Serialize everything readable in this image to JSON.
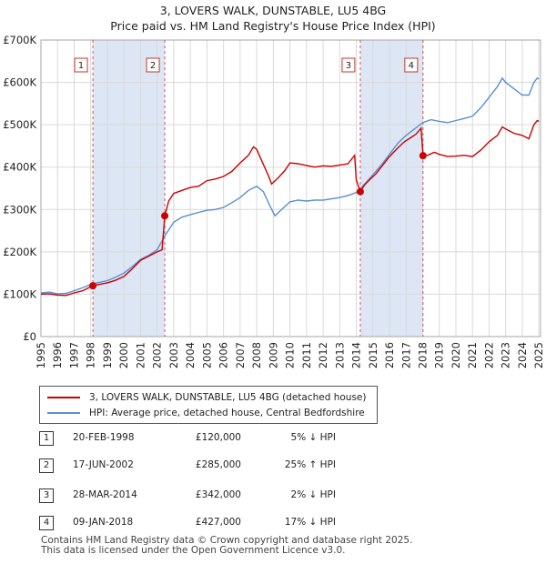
{
  "title": "3, LOVERS WALK, DUNSTABLE, LU5 4BG",
  "subtitle": "Price paid vs. HM Land Registry's House Price Index (HPI)",
  "colors": {
    "property": "#cc0000",
    "hpi": "#5a8fd0",
    "shade": "#dce6f5",
    "grid": "#d9d9d9"
  },
  "chart_data": {
    "type": "line",
    "xlim": [
      1995,
      2025.1
    ],
    "ylim": [
      0,
      700000
    ],
    "y_ticks": [
      {
        "value": 0,
        "label": "£0"
      },
      {
        "value": 100000,
        "label": "£100K"
      },
      {
        "value": 200000,
        "label": "£200K"
      },
      {
        "value": 300000,
        "label": "£300K"
      },
      {
        "value": 400000,
        "label": "£400K"
      },
      {
        "value": 500000,
        "label": "£500K"
      },
      {
        "value": 600000,
        "label": "£600K"
      },
      {
        "value": 700000,
        "label": "£700K"
      }
    ],
    "x_ticks": [
      "1995",
      "1996",
      "1997",
      "1998",
      "1999",
      "2000",
      "2001",
      "2002",
      "2003",
      "2004",
      "2005",
      "2006",
      "2007",
      "2008",
      "2009",
      "2010",
      "2011",
      "2012",
      "2013",
      "2014",
      "2015",
      "2016",
      "2017",
      "2018",
      "2019",
      "2020",
      "2021",
      "2022",
      "2023",
      "2024",
      "2025"
    ],
    "shaded_periods": [
      [
        1998.13,
        2002.46
      ],
      [
        2014.24,
        2018.02
      ]
    ],
    "series": [
      {
        "name": "3, LOVERS WALK, DUNSTABLE, LU5 4BG (detached house)",
        "points": [
          [
            1995.0,
            100000
          ],
          [
            1995.5,
            101000
          ],
          [
            1996.0,
            98000
          ],
          [
            1996.5,
            97000
          ],
          [
            1997.0,
            103000
          ],
          [
            1997.5,
            108000
          ],
          [
            1998.13,
            120000
          ],
          [
            1998.5,
            123000
          ],
          [
            1999.0,
            127000
          ],
          [
            1999.5,
            133000
          ],
          [
            2000.0,
            142000
          ],
          [
            2000.5,
            160000
          ],
          [
            2001.0,
            180000
          ],
          [
            2001.5,
            190000
          ],
          [
            2002.0,
            200000
          ],
          [
            2002.3,
            205000
          ],
          [
            2002.46,
            285000
          ],
          [
            2002.7,
            320000
          ],
          [
            2003.0,
            338000
          ],
          [
            2003.5,
            345000
          ],
          [
            2004.0,
            352000
          ],
          [
            2004.5,
            355000
          ],
          [
            2005.0,
            368000
          ],
          [
            2005.5,
            372000
          ],
          [
            2006.0,
            378000
          ],
          [
            2006.5,
            390000
          ],
          [
            2007.0,
            410000
          ],
          [
            2007.5,
            428000
          ],
          [
            2007.8,
            448000
          ],
          [
            2008.0,
            442000
          ],
          [
            2008.3,
            415000
          ],
          [
            2008.7,
            380000
          ],
          [
            2008.9,
            360000
          ],
          [
            2009.3,
            375000
          ],
          [
            2009.7,
            392000
          ],
          [
            2010.0,
            410000
          ],
          [
            2010.5,
            408000
          ],
          [
            2011.0,
            404000
          ],
          [
            2011.5,
            400000
          ],
          [
            2012.0,
            403000
          ],
          [
            2012.5,
            402000
          ],
          [
            2013.0,
            405000
          ],
          [
            2013.5,
            408000
          ],
          [
            2013.9,
            428000
          ],
          [
            2014.0,
            370000
          ],
          [
            2014.24,
            342000
          ],
          [
            2014.5,
            358000
          ],
          [
            2014.8,
            370000
          ],
          [
            2015.2,
            385000
          ],
          [
            2015.6,
            405000
          ],
          [
            2016.0,
            425000
          ],
          [
            2016.5,
            445000
          ],
          [
            2016.9,
            460000
          ],
          [
            2017.3,
            470000
          ],
          [
            2017.6,
            478000
          ],
          [
            2017.9,
            492000
          ],
          [
            2018.02,
            427000
          ],
          [
            2018.3,
            428000
          ],
          [
            2018.7,
            435000
          ],
          [
            2019.0,
            430000
          ],
          [
            2019.5,
            425000
          ],
          [
            2020.0,
            426000
          ],
          [
            2020.5,
            428000
          ],
          [
            2021.0,
            425000
          ],
          [
            2021.5,
            440000
          ],
          [
            2022.0,
            460000
          ],
          [
            2022.5,
            475000
          ],
          [
            2022.8,
            495000
          ],
          [
            2023.0,
            490000
          ],
          [
            2023.5,
            480000
          ],
          [
            2024.0,
            475000
          ],
          [
            2024.4,
            467000
          ],
          [
            2024.7,
            500000
          ],
          [
            2024.9,
            510000
          ],
          [
            2025.0,
            508000
          ]
        ]
      },
      {
        "name": "HPI: Average price, detached house, Central Bedfordshire",
        "points": [
          [
            1995.0,
            103000
          ],
          [
            1995.5,
            105000
          ],
          [
            1996.0,
            101000
          ],
          [
            1996.5,
            102000
          ],
          [
            1997.0,
            108000
          ],
          [
            1997.5,
            115000
          ],
          [
            1998.0,
            123000
          ],
          [
            1998.5,
            128000
          ],
          [
            1999.0,
            132000
          ],
          [
            1999.5,
            140000
          ],
          [
            2000.0,
            150000
          ],
          [
            2000.5,
            165000
          ],
          [
            2001.0,
            182000
          ],
          [
            2001.5,
            192000
          ],
          [
            2002.0,
            205000
          ],
          [
            2002.5,
            240000
          ],
          [
            2003.0,
            270000
          ],
          [
            2003.5,
            282000
          ],
          [
            2004.0,
            288000
          ],
          [
            2004.5,
            293000
          ],
          [
            2005.0,
            298000
          ],
          [
            2005.5,
            300000
          ],
          [
            2006.0,
            305000
          ],
          [
            2006.5,
            316000
          ],
          [
            2007.0,
            328000
          ],
          [
            2007.5,
            345000
          ],
          [
            2008.0,
            355000
          ],
          [
            2008.4,
            342000
          ],
          [
            2008.8,
            308000
          ],
          [
            2009.1,
            285000
          ],
          [
            2009.5,
            300000
          ],
          [
            2010.0,
            318000
          ],
          [
            2010.5,
            322000
          ],
          [
            2011.0,
            320000
          ],
          [
            2011.5,
            322000
          ],
          [
            2012.0,
            322000
          ],
          [
            2012.5,
            325000
          ],
          [
            2013.0,
            328000
          ],
          [
            2013.5,
            333000
          ],
          [
            2014.0,
            340000
          ],
          [
            2014.5,
            360000
          ],
          [
            2015.0,
            382000
          ],
          [
            2015.5,
            405000
          ],
          [
            2016.0,
            430000
          ],
          [
            2016.5,
            456000
          ],
          [
            2017.0,
            475000
          ],
          [
            2017.5,
            490000
          ],
          [
            2018.0,
            505000
          ],
          [
            2018.5,
            512000
          ],
          [
            2019.0,
            508000
          ],
          [
            2019.5,
            505000
          ],
          [
            2020.0,
            510000
          ],
          [
            2020.5,
            515000
          ],
          [
            2021.0,
            520000
          ],
          [
            2021.5,
            540000
          ],
          [
            2022.0,
            565000
          ],
          [
            2022.5,
            590000
          ],
          [
            2022.8,
            610000
          ],
          [
            2023.0,
            600000
          ],
          [
            2023.5,
            585000
          ],
          [
            2024.0,
            570000
          ],
          [
            2024.4,
            570000
          ],
          [
            2024.7,
            600000
          ],
          [
            2024.9,
            610000
          ],
          [
            2025.0,
            608000
          ]
        ]
      }
    ],
    "sales": [
      {
        "n": "1",
        "year": 1998.13,
        "price": 120000
      },
      {
        "n": "2",
        "year": 2002.46,
        "price": 285000
      },
      {
        "n": "3",
        "year": 2014.24,
        "price": 342000
      },
      {
        "n": "4",
        "year": 2018.02,
        "price": 427000
      }
    ]
  },
  "legend": [
    {
      "label": "3, LOVERS WALK, DUNSTABLE, LU5 4BG (detached house)"
    },
    {
      "label": "HPI: Average price, detached house, Central Bedfordshire"
    }
  ],
  "sales_table": [
    {
      "n": "1",
      "date": "20-FEB-1998",
      "price": "£120,000",
      "hpi": "5% ↓ HPI"
    },
    {
      "n": "2",
      "date": "17-JUN-2002",
      "price": "£285,000",
      "hpi": "25% ↑ HPI"
    },
    {
      "n": "3",
      "date": "28-MAR-2014",
      "price": "£342,000",
      "hpi": "2% ↓ HPI"
    },
    {
      "n": "4",
      "date": "09-JAN-2018",
      "price": "£427,000",
      "hpi": "17% ↓ HPI"
    }
  ],
  "footer": {
    "line1": "Contains HM Land Registry data © Crown copyright and database right 2025.",
    "line2": "This data is licensed under the Open Government Licence v3.0."
  }
}
